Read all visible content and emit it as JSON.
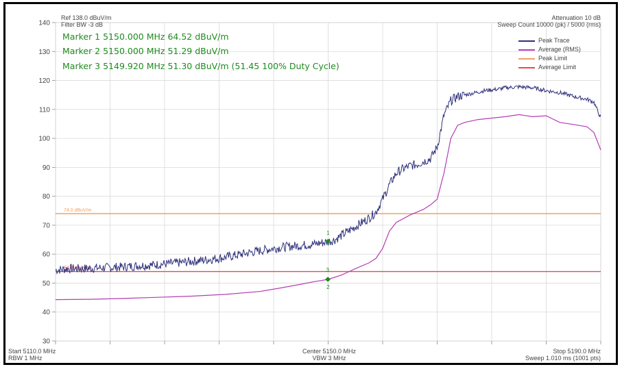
{
  "header": {
    "ref_level": "Ref 138.0 dBuV/m",
    "filter_bw": "Filter BW -3 dB",
    "attenuation": "Attenuation 10 dB",
    "sweep_count": "Sweep Count 10000 (pk) / 5000 (rms)"
  },
  "markers": {
    "m1": "Marker 1 5150.000 MHz 64.52 dBuV/m",
    "m2": "Marker 2 5150.000 MHz 51.29 dBuV/m",
    "m3": "Marker 3 5149.920 MHz 51.30 dBuV/m (51.45 100% Duty Cycle)"
  },
  "footer": {
    "start": "Start 5110.0 MHz",
    "rbw": "RBW 1 MHz",
    "center": "Center 5150.0 MHz",
    "vbw": "VBW 3 MHz",
    "stop": "Stop 5190.0 MHz",
    "sweep": "Sweep 1.010 ms (1001 pts)"
  },
  "colors": {
    "peak_trace": "#2d2f7a",
    "average_trace": "#b43cb4",
    "peak_limit": "#f0a060",
    "average_limit": "#e84a4a",
    "marker": "#1f8a1f",
    "grid": "#d9d9d9"
  },
  "chart_data": {
    "type": "line",
    "xlim": [
      5110,
      5190
    ],
    "ylim": [
      30,
      140
    ],
    "yticks": [
      30,
      40,
      50,
      60,
      70,
      80,
      90,
      100,
      110,
      120,
      130,
      140
    ],
    "x_grid_step": 8,
    "grid": true,
    "legend_position": "top-right",
    "series": [
      {
        "name": "Peak Trace",
        "color": "#2d2f7a",
        "x": [
          5110,
          5112,
          5114,
          5116,
          5118,
          5120,
          5122,
          5124,
          5126,
          5128,
          5130,
          5132,
          5134,
          5136,
          5138,
          5140,
          5142,
          5144,
          5146,
          5148,
          5150,
          5151,
          5152,
          5153,
          5154,
          5155,
          5156,
          5157,
          5158,
          5159,
          5160,
          5161,
          5162,
          5163,
          5164,
          5165,
          5166,
          5167,
          5168,
          5169,
          5170,
          5171,
          5172,
          5173,
          5174,
          5175,
          5176,
          5178,
          5180,
          5182,
          5184,
          5186,
          5188,
          5189,
          5190
        ],
        "y": [
          54.5,
          55,
          55,
          55.2,
          55.4,
          55.6,
          56,
          56.2,
          56.6,
          57,
          57.5,
          58,
          58.6,
          59.4,
          60.3,
          61.2,
          62,
          62.6,
          63,
          63.5,
          64.3,
          65,
          66.5,
          68,
          69.5,
          71,
          72.5,
          74.5,
          79,
          84,
          88,
          89.5,
          90.5,
          91,
          92,
          93,
          97,
          108,
          113,
          114.5,
          115,
          115.5,
          116,
          116.5,
          116.8,
          117,
          117.5,
          117.8,
          117.5,
          116.5,
          115.8,
          114.5,
          113.5,
          112.5,
          107
        ]
      },
      {
        "name": "Average (RMS)",
        "color": "#b43cb4",
        "x": [
          5110,
          5115,
          5120,
          5125,
          5130,
          5135,
          5140,
          5143,
          5146,
          5148,
          5150,
          5152,
          5154,
          5156,
          5157,
          5158,
          5158.5,
          5159,
          5160,
          5162,
          5164,
          5165,
          5166,
          5167,
          5168,
          5169,
          5170,
          5172,
          5174,
          5176,
          5178,
          5180,
          5182,
          5184,
          5186,
          5188,
          5189,
          5190
        ],
        "y": [
          44.3,
          44.4,
          44.7,
          45.1,
          45.5,
          46.1,
          47.1,
          48.3,
          49.6,
          50.5,
          51.3,
          52.8,
          55,
          57,
          58.5,
          62,
          65,
          68,
          71,
          73.5,
          75.5,
          77,
          79,
          88,
          100,
          104.5,
          105.5,
          106.5,
          107,
          107.5,
          108.2,
          107.5,
          107.8,
          105.5,
          104.8,
          104,
          102,
          96
        ]
      }
    ],
    "limits": [
      {
        "name": "Peak Limit",
        "value": 74.0,
        "label": "74.0 dBuV/m",
        "color": "#f0a060"
      },
      {
        "name": "Average Limit",
        "value": 54.0,
        "label": "54.0 dBuV/m",
        "color": "#e84a4a"
      }
    ],
    "marker_points": [
      {
        "label": "1",
        "x": 5150.0,
        "y": 64.52
      },
      {
        "label": "2",
        "x": 5150.0,
        "y": 51.29
      },
      {
        "label": "3",
        "x": 5149.92,
        "y": 51.3
      }
    ]
  }
}
